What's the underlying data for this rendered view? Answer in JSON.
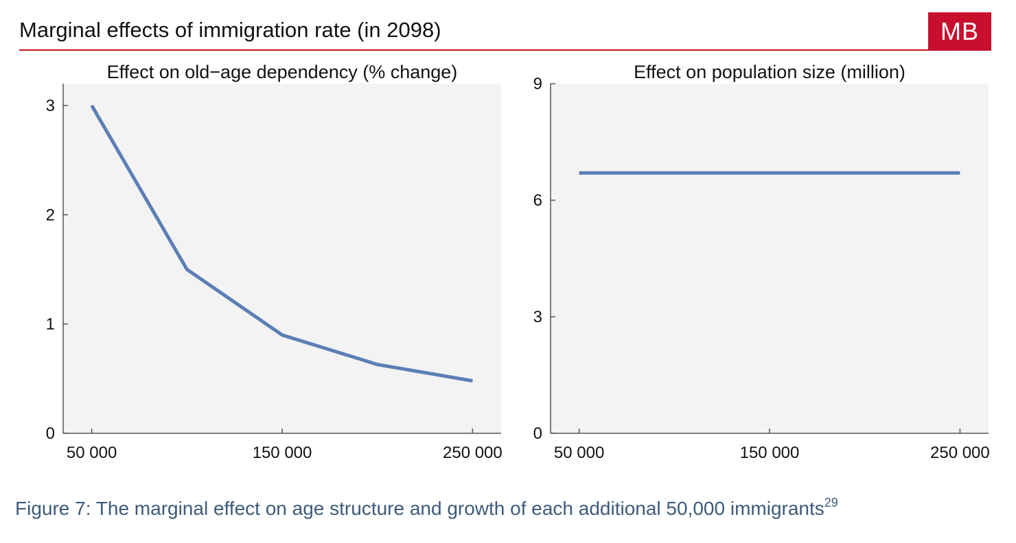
{
  "header": {
    "title": "Marginal effects of immigration rate (in 2098)",
    "logo_text": "MB",
    "accent_color": "#c0161d",
    "logo_color": "#c8102e"
  },
  "caption": {
    "text": "Figure 7: The marginal effect on age structure and growth of each additional 50,000 immigrants",
    "footnote": "29",
    "color": "#3d5a7a"
  },
  "chart_data": [
    {
      "type": "line",
      "title": "Effect on old−age dependency (% change)",
      "xlabel": "",
      "ylabel": "",
      "x": [
        50000,
        100000,
        150000,
        200000,
        250000
      ],
      "series": [
        {
          "values": [
            3.0,
            1.5,
            0.9,
            0.63,
            0.48
          ],
          "color": "#5b7fb5"
        }
      ],
      "xlim": [
        35000,
        265000
      ],
      "ylim": [
        0,
        3.2
      ],
      "xticks": [
        50000,
        150000,
        250000
      ],
      "xtick_labels": [
        "50 000",
        "150 000",
        "250 000"
      ],
      "yticks": [
        0,
        1,
        2,
        3
      ],
      "ytick_labels": [
        "0",
        "1",
        "2",
        "3"
      ],
      "grid": false,
      "background": "#f3f3f3"
    },
    {
      "type": "line",
      "title": "Effect on population size (million)",
      "xlabel": "",
      "ylabel": "",
      "x": [
        50000,
        100000,
        150000,
        200000,
        250000
      ],
      "series": [
        {
          "values": [
            6.7,
            6.7,
            6.7,
            6.7,
            6.7
          ],
          "color": "#5b7fb5"
        }
      ],
      "xlim": [
        35000,
        265000
      ],
      "ylim": [
        0,
        9
      ],
      "xticks": [
        50000,
        150000,
        250000
      ],
      "xtick_labels": [
        "50 000",
        "150 000",
        "250 000"
      ],
      "yticks": [
        0,
        3,
        6,
        9
      ],
      "ytick_labels": [
        "0",
        "3",
        "6",
        "9"
      ],
      "grid": false,
      "background": "#f3f3f3"
    }
  ]
}
